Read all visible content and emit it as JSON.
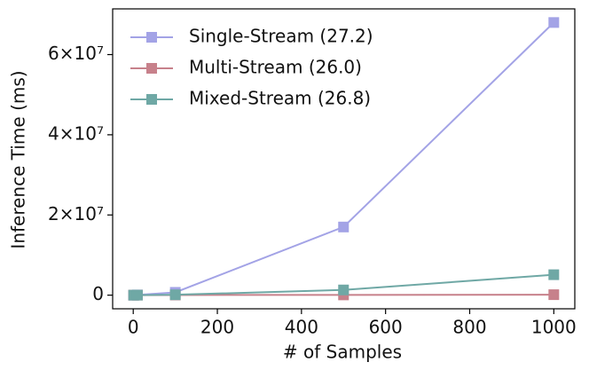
{
  "chart_data": {
    "type": "line",
    "x_label": "# of Samples",
    "y_label": "Inference Time (ms)",
    "x": [
      1,
      10,
      100,
      500,
      1000
    ],
    "series": [
      {
        "name": "Single-Stream (27.2)",
        "color": "#a3a3e6",
        "values": [
          1000,
          60000,
          700000,
          17000000,
          68000000
        ]
      },
      {
        "name": "Multi-Stream (26.0)",
        "color": "#c7818b",
        "values": [
          500,
          5000,
          40000,
          60000,
          120000
        ]
      },
      {
        "name": "Mixed-Stream (26.8)",
        "color": "#6fa8a5",
        "values": [
          800,
          10000,
          100000,
          1300000,
          5100000
        ]
      }
    ],
    "xlim": [
      -48.95,
      1049.95
    ],
    "xticks": [
      0,
      200,
      400,
      600,
      800,
      1000
    ],
    "ylim": [
      -3400000,
      71400000
    ],
    "yticks": [
      0,
      {
        "value": 20000000,
        "label": "2×10⁷"
      },
      {
        "value": 40000000,
        "label": "4×10⁷"
      },
      {
        "value": 60000000,
        "label": "6×10⁷"
      }
    ],
    "legend": "upper left",
    "marker": "square"
  }
}
